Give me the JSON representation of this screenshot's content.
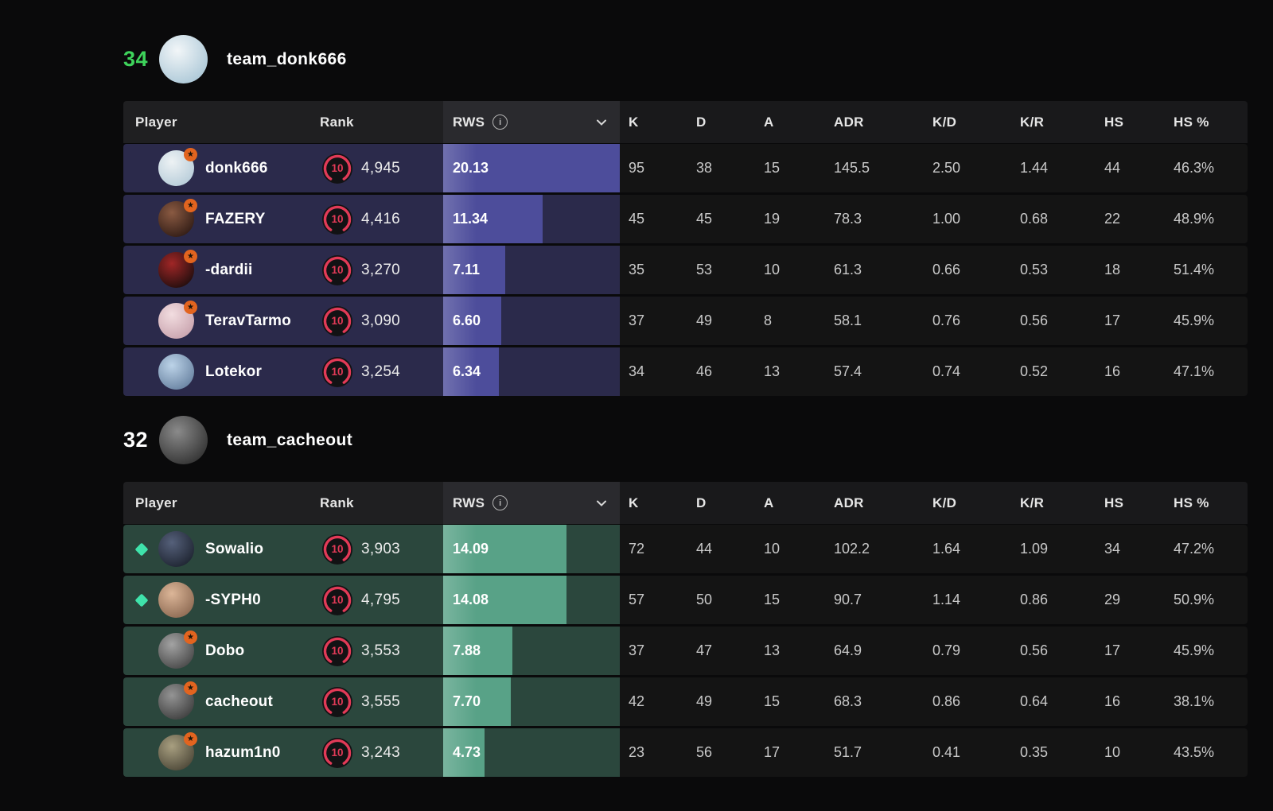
{
  "rws_max": 20.13,
  "columns": {
    "player": "Player",
    "rank": "Rank",
    "rws": "RWS",
    "k": "K",
    "d": "D",
    "a": "A",
    "adr": "ADR",
    "kd": "K/D",
    "kr": "K/R",
    "hs": "HS",
    "hs_pct": "HS %"
  },
  "icons": {
    "star_badge": "★",
    "rws_info": "i",
    "rws_sort": "chevron-down",
    "rank_gauge": "level-ring"
  },
  "colors": {
    "page_bg": "#0a0a0b",
    "header_left_bg": "#1f1f21",
    "header_rws_bg": "#2a2a2e",
    "header_stats_bg": "#19191b",
    "stats_row_bg": "#141414",
    "rank_ring": "#e23a57",
    "star_badge": "#e2641f",
    "diamond": "#3fe3ab"
  },
  "teams": [
    {
      "score": "34",
      "name": "team_donk666",
      "score_color": "#3ed35b",
      "row_bg": "#2b2a4b",
      "bar_color": "#4d4d9b",
      "avatar_colors": [
        "#f2f6f8",
        "#a9c6d6"
      ],
      "players": [
        {
          "name": "donk666",
          "rank_level": "10",
          "rank": "4,945",
          "rws": "20.13",
          "k": "95",
          "d": "38",
          "a": "15",
          "adr": "145.5",
          "kd": "2.50",
          "kr": "1.44",
          "hs": "44",
          "hs_pct": "46.3%",
          "star": true,
          "diamond": false,
          "avatar_colors": [
            "#edf2f4",
            "#b5cbd8"
          ]
        },
        {
          "name": "FAZERY",
          "rank_level": "10",
          "rank": "4,416",
          "rws": "11.34",
          "k": "45",
          "d": "45",
          "a": "19",
          "adr": "78.3",
          "kd": "1.00",
          "kr": "0.68",
          "hs": "22",
          "hs_pct": "48.9%",
          "star": true,
          "diamond": false,
          "avatar_colors": [
            "#8a5a42",
            "#2e1a14"
          ]
        },
        {
          "name": "-dardii",
          "rank_level": "10",
          "rank": "3,270",
          "rws": "7.11",
          "k": "35",
          "d": "53",
          "a": "10",
          "adr": "61.3",
          "kd": "0.66",
          "kr": "0.53",
          "hs": "18",
          "hs_pct": "51.4%",
          "star": true,
          "diamond": false,
          "avatar_colors": [
            "#a02626",
            "#1c0d0d"
          ]
        },
        {
          "name": "TeravTarmo",
          "rank_level": "10",
          "rank": "3,090",
          "rws": "6.60",
          "k": "37",
          "d": "49",
          "a": "8",
          "adr": "58.1",
          "kd": "0.76",
          "kr": "0.56",
          "hs": "17",
          "hs_pct": "45.9%",
          "star": true,
          "diamond": false,
          "avatar_colors": [
            "#f2dde0",
            "#c7a1ac"
          ]
        },
        {
          "name": "Lotekor",
          "rank_level": "10",
          "rank": "3,254",
          "rws": "6.34",
          "k": "34",
          "d": "46",
          "a": "13",
          "adr": "57.4",
          "kd": "0.74",
          "kr": "0.52",
          "hs": "16",
          "hs_pct": "47.1%",
          "star": false,
          "diamond": false,
          "avatar_colors": [
            "#bcd3e8",
            "#66809f"
          ]
        }
      ]
    },
    {
      "score": "32",
      "name": "team_cacheout",
      "score_color": "#ffffff",
      "row_bg": "#2b473d",
      "bar_color": "#58a287",
      "avatar_colors": [
        "#8a8a8a",
        "#2f2f2f"
      ],
      "players": [
        {
          "name": "Sowalio",
          "rank_level": "10",
          "rank": "3,903",
          "rws": "14.09",
          "k": "72",
          "d": "44",
          "a": "10",
          "adr": "102.2",
          "kd": "1.64",
          "kr": "1.09",
          "hs": "34",
          "hs_pct": "47.2%",
          "star": false,
          "diamond": true,
          "avatar_colors": [
            "#55607a",
            "#1c222e"
          ]
        },
        {
          "name": "-SYPH0",
          "rank_level": "10",
          "rank": "4,795",
          "rws": "14.08",
          "k": "57",
          "d": "50",
          "a": "15",
          "adr": "90.7",
          "kd": "1.14",
          "kr": "0.86",
          "hs": "29",
          "hs_pct": "50.9%",
          "star": false,
          "diamond": true,
          "avatar_colors": [
            "#dcb698",
            "#8a6750"
          ]
        },
        {
          "name": "Dobo",
          "rank_level": "10",
          "rank": "3,553",
          "rws": "7.88",
          "k": "37",
          "d": "47",
          "a": "13",
          "adr": "64.9",
          "kd": "0.79",
          "kr": "0.56",
          "hs": "17",
          "hs_pct": "45.9%",
          "star": true,
          "diamond": false,
          "avatar_colors": [
            "#a3a3a3",
            "#454545"
          ]
        },
        {
          "name": "cacheout",
          "rank_level": "10",
          "rank": "3,555",
          "rws": "7.70",
          "k": "42",
          "d": "49",
          "a": "15",
          "adr": "68.3",
          "kd": "0.86",
          "kr": "0.64",
          "hs": "16",
          "hs_pct": "38.1%",
          "star": true,
          "diamond": false,
          "avatar_colors": [
            "#949494",
            "#3c3c3c"
          ]
        },
        {
          "name": "hazum1n0",
          "rank_level": "10",
          "rank": "3,243",
          "rws": "4.73",
          "k": "23",
          "d": "56",
          "a": "17",
          "adr": "51.7",
          "kd": "0.41",
          "kr": "0.35",
          "hs": "10",
          "hs_pct": "43.5%",
          "star": true,
          "diamond": false,
          "avatar_colors": [
            "#a89f80",
            "#4a4536"
          ]
        }
      ]
    }
  ]
}
